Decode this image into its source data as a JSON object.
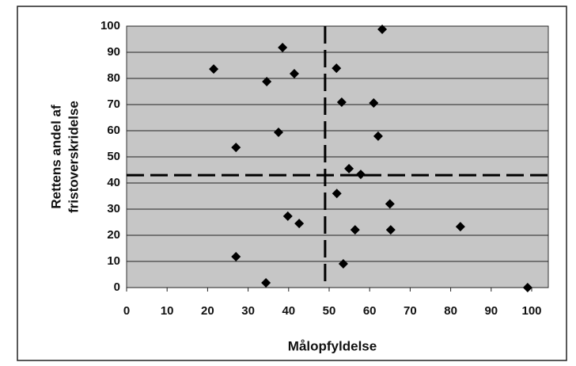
{
  "chart_data": {
    "type": "scatter",
    "xlabel": "Målopfyldelse",
    "ylabel": [
      "Rettens andel af",
      "fristoverskridelse"
    ],
    "x": [
      21.5,
      38.5,
      34.6,
      41.4,
      27,
      37.5,
      63.1,
      51.8,
      53.1,
      61,
      62.1,
      54.9,
      57.8,
      51.9,
      65,
      39.8,
      42.6,
      56.4,
      65.2,
      82.4,
      27,
      53.5,
      34.4,
      99
    ],
    "values": [
      83.6,
      91.8,
      78.8,
      81.8,
      53.6,
      59.4,
      98.8,
      83.9,
      70.9,
      70.6,
      57.9,
      45.5,
      43.3,
      36,
      32,
      27.3,
      24.5,
      22.1,
      22.1,
      23.3,
      11.8,
      9.1,
      1.8,
      0
    ],
    "color": "#000000",
    "xlim": [
      0,
      100
    ],
    "xticks": [
      0,
      10,
      20,
      30,
      40,
      50,
      60,
      70,
      80,
      90,
      100
    ],
    "ylim": [
      0,
      100
    ],
    "yticks": [
      0,
      10,
      20,
      30,
      40,
      50,
      60,
      70,
      80,
      90,
      100
    ],
    "grid": true,
    "reference_lines": {
      "x": 49,
      "y": 43
    }
  }
}
